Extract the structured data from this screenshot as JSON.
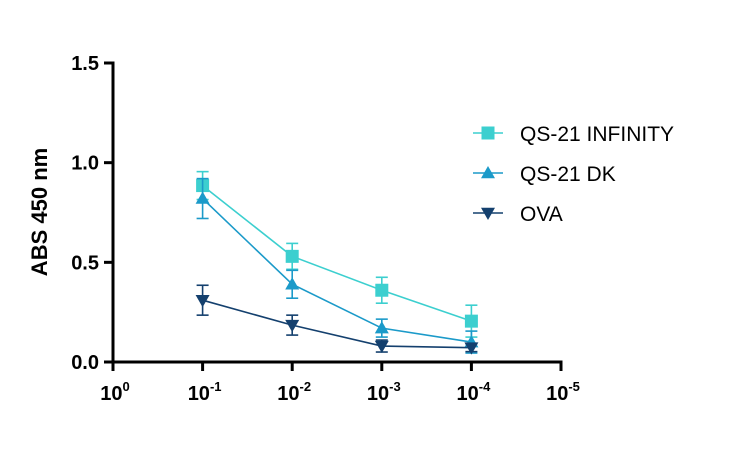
{
  "chart_data": {
    "type": "line",
    "title": "",
    "xlabel": "",
    "ylabel": "ABS 450 nm",
    "xscale": "log",
    "x_ticks": [
      {
        "base": "10",
        "exp": "0"
      },
      {
        "base": "10",
        "exp": "-1"
      },
      {
        "base": "10",
        "exp": "-2"
      },
      {
        "base": "10",
        "exp": "-3"
      },
      {
        "base": "10",
        "exp": "-4"
      },
      {
        "base": "10",
        "exp": "-5"
      }
    ],
    "y_ticks": [
      "0.0",
      "0.5",
      "1.0",
      "1.5"
    ],
    "ylim": [
      0,
      1.5
    ],
    "xlim_exponent": [
      0,
      -5
    ],
    "legend_position": "right",
    "series": [
      {
        "name": "QS-21 INFINITY",
        "marker": "square",
        "color": "#3ccfcf",
        "x_exponent": [
          -1,
          -2,
          -3,
          -4
        ],
        "values": [
          0.885,
          0.53,
          0.36,
          0.205
        ],
        "errors": [
          0.07,
          0.065,
          0.065,
          0.08
        ]
      },
      {
        "name": "QS-21 DK",
        "marker": "triangle-up",
        "color": "#1b9ac9",
        "x_exponent": [
          -1,
          -2,
          -3,
          -4
        ],
        "values": [
          0.82,
          0.39,
          0.17,
          0.1
        ],
        "errors": [
          0.1,
          0.07,
          0.045,
          0.055
        ]
      },
      {
        "name": "OVA",
        "marker": "triangle-down",
        "color": "#14406e",
        "x_exponent": [
          -1,
          -2,
          -3,
          -4
        ],
        "values": [
          0.31,
          0.185,
          0.08,
          0.072
        ],
        "errors": [
          0.075,
          0.05,
          0.03,
          0.02
        ]
      }
    ]
  }
}
